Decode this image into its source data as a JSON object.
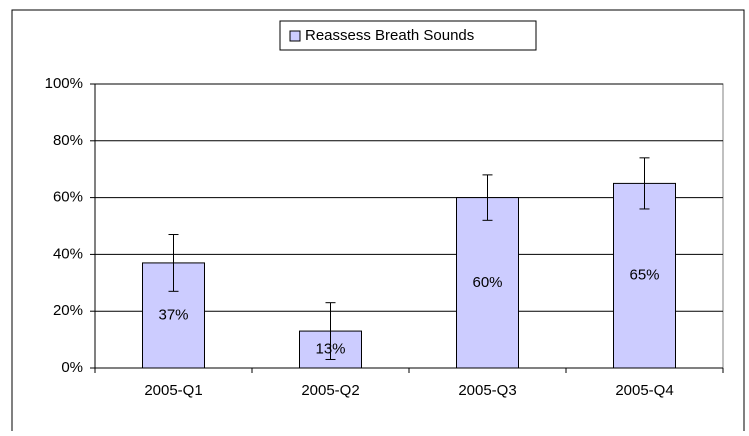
{
  "chart_data": {
    "type": "bar",
    "categories": [
      "2005-Q1",
      "2005-Q2",
      "2005-Q3",
      "2005-Q4"
    ],
    "series": [
      {
        "name": "Reassess Breath Sounds",
        "color": "#ccccff",
        "values": [
          37,
          13,
          60,
          65
        ],
        "value_labels": [
          "37%",
          "13%",
          "60%",
          "65%"
        ],
        "errors": [
          10,
          10,
          8,
          9
        ]
      }
    ],
    "ylim": [
      0,
      100
    ],
    "yticks": [
      {
        "value": 0,
        "label": "0%"
      },
      {
        "value": 20,
        "label": "20%"
      },
      {
        "value": 40,
        "label": "40%"
      },
      {
        "value": 60,
        "label": "60%"
      },
      {
        "value": 80,
        "label": "80%"
      },
      {
        "value": 100,
        "label": "100%"
      }
    ],
    "grid": true,
    "legend": "top"
  }
}
